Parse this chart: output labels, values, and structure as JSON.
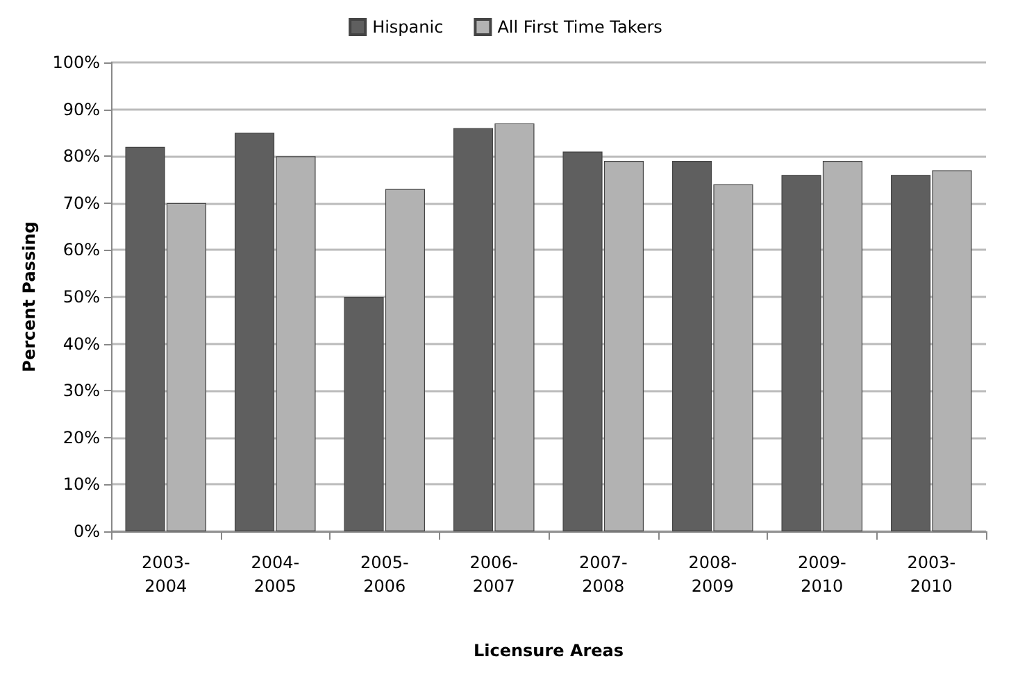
{
  "chart_data": {
    "type": "bar",
    "xlabel": "Licensure Areas",
    "ylabel": "Percent Passing",
    "categories": [
      "2003-2004",
      "2004-2005",
      "2005-2006",
      "2006-2007",
      "2007-2008",
      "2008-2009",
      "2009-2010",
      "2003-2010"
    ],
    "series": [
      {
        "name": "Hispanic",
        "color": "#5f5f5f",
        "values": [
          82,
          85,
          50,
          86,
          81,
          79,
          76,
          76
        ]
      },
      {
        "name": "All First Time Takers",
        "color": "#b2b2b2",
        "values": [
          70,
          80,
          73,
          87,
          79,
          74,
          79,
          77
        ]
      }
    ],
    "ylim": [
      0,
      100
    ],
    "yticks": [
      {
        "value": 0,
        "label": "0%"
      },
      {
        "value": 10,
        "label": "10%"
      },
      {
        "value": 20,
        "label": "20%"
      },
      {
        "value": 30,
        "label": "30%"
      },
      {
        "value": 40,
        "label": "40%"
      },
      {
        "value": 50,
        "label": "50%"
      },
      {
        "value": 60,
        "label": "60%"
      },
      {
        "value": 70,
        "label": "70%"
      },
      {
        "value": 80,
        "label": "80%"
      },
      {
        "value": 90,
        "label": "90%"
      },
      {
        "value": 100,
        "label": "100%"
      }
    ],
    "grid": "y",
    "legend": "top"
  }
}
